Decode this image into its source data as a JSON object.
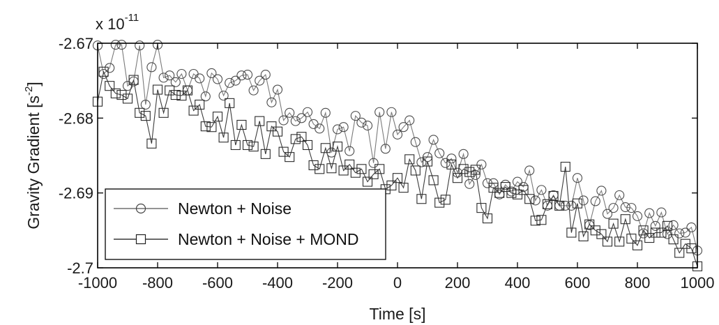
{
  "chart_data": {
    "type": "line",
    "xlabel": "Time [s]",
    "ylabel_main": "Gravity Gradient [s",
    "ylabel_sup": "-2",
    "ylabel_end": "]",
    "y_multiplier_base": "x 10",
    "y_multiplier_exp": "-11",
    "xlim": [
      -1000,
      1000
    ],
    "ylim": [
      -2.7,
      -2.67
    ],
    "x_ticks": [
      -1000,
      -800,
      -600,
      -400,
      -200,
      0,
      200,
      400,
      600,
      800,
      1000
    ],
    "x_tick_labels": [
      "-1000",
      "-800",
      "-600",
      "-400",
      "-200",
      "0",
      "200",
      "400",
      "600",
      "800",
      "1000"
    ],
    "y_ticks": [
      -2.67,
      -2.68,
      -2.69,
      -2.7
    ],
    "y_tick_labels": [
      "-2.67",
      "-2.68",
      "-2.69",
      "-2.7"
    ],
    "grid": false,
    "legend_position": "bottom-left",
    "colors": {
      "line": "#6b6b6b",
      "marker": "#4a4a4a",
      "axis": "#000000"
    },
    "series": [
      {
        "name": "Newton + Noise",
        "marker": "circle",
        "x": [
          -1000,
          -980,
          -960,
          -940,
          -920,
          -900,
          -880,
          -860,
          -840,
          -820,
          -800,
          -780,
          -760,
          -740,
          -720,
          -700,
          -680,
          -660,
          -640,
          -620,
          -600,
          -580,
          -560,
          -540,
          -520,
          -500,
          -480,
          -460,
          -440,
          -420,
          -400,
          -380,
          -360,
          -340,
          -320,
          -300,
          -280,
          -260,
          -240,
          -220,
          -200,
          -180,
          -160,
          -140,
          -120,
          -100,
          -80,
          -60,
          -40,
          -20,
          0,
          20,
          40,
          60,
          80,
          100,
          120,
          140,
          160,
          180,
          200,
          220,
          240,
          260,
          280,
          300,
          320,
          340,
          360,
          380,
          400,
          420,
          440,
          460,
          480,
          500,
          520,
          540,
          560,
          580,
          600,
          620,
          640,
          660,
          680,
          700,
          720,
          740,
          760,
          780,
          800,
          820,
          840,
          860,
          880,
          900,
          920,
          940,
          960,
          980,
          1000
        ],
        "values": [
          -2.6703,
          -2.6741,
          -2.6733,
          -2.6702,
          -2.6702,
          -2.6757,
          -2.6751,
          -2.6703,
          -2.6782,
          -2.6732,
          -2.6702,
          -2.6746,
          -2.6743,
          -2.6752,
          -2.6741,
          -2.6763,
          -2.6741,
          -2.6747,
          -2.6771,
          -2.674,
          -2.6748,
          -2.677,
          -2.6753,
          -2.675,
          -2.6743,
          -2.6742,
          -2.6763,
          -2.675,
          -2.6742,
          -2.6779,
          -2.6762,
          -2.6803,
          -2.6793,
          -2.6804,
          -2.68,
          -2.6792,
          -2.6808,
          -2.6814,
          -2.6793,
          -2.6846,
          -2.6815,
          -2.6812,
          -2.6844,
          -2.6797,
          -2.6806,
          -2.681,
          -2.686,
          -2.6792,
          -2.6841,
          -2.6792,
          -2.6822,
          -2.6812,
          -2.6803,
          -2.6832,
          -2.6859,
          -2.6852,
          -2.6829,
          -2.6847,
          -2.686,
          -2.6854,
          -2.6873,
          -2.6848,
          -2.6888,
          -2.6876,
          -2.6862,
          -2.6887,
          -2.6887,
          -2.6902,
          -2.6889,
          -2.6898,
          -2.6885,
          -2.6892,
          -2.687,
          -2.691,
          -2.6896,
          -2.6917,
          -2.6903,
          -2.6917,
          -2.6917,
          -2.6917,
          -2.688,
          -2.691,
          -2.6943,
          -2.6911,
          -2.6897,
          -2.6928,
          -2.692,
          -2.6903,
          -2.6919,
          -2.692,
          -2.6931,
          -2.6954,
          -2.6927,
          -2.6944,
          -2.6926,
          -2.6955,
          -2.6943,
          -2.6954,
          -2.6953,
          -2.6946,
          -2.6977
        ]
      },
      {
        "name": "Newton + Noise + MOND",
        "marker": "square",
        "x": [
          -1000,
          -980,
          -960,
          -940,
          -920,
          -900,
          -880,
          -860,
          -840,
          -820,
          -800,
          -780,
          -760,
          -740,
          -720,
          -700,
          -680,
          -660,
          -640,
          -620,
          -600,
          -580,
          -560,
          -540,
          -520,
          -500,
          -480,
          -460,
          -440,
          -420,
          -400,
          -380,
          -360,
          -340,
          -320,
          -300,
          -280,
          -260,
          -240,
          -220,
          -200,
          -180,
          -160,
          -140,
          -120,
          -100,
          -80,
          -60,
          -40,
          -20,
          0,
          20,
          40,
          60,
          80,
          100,
          120,
          140,
          160,
          180,
          200,
          220,
          240,
          260,
          280,
          300,
          320,
          340,
          360,
          380,
          400,
          420,
          440,
          460,
          480,
          500,
          520,
          540,
          560,
          580,
          600,
          620,
          640,
          660,
          680,
          700,
          720,
          740,
          760,
          780,
          800,
          820,
          840,
          860,
          880,
          900,
          920,
          940,
          960,
          980,
          1000
        ],
        "values": [
          -2.6778,
          -2.6738,
          -2.6757,
          -2.6767,
          -2.6769,
          -2.6774,
          -2.6749,
          -2.6793,
          -2.6797,
          -2.6834,
          -2.6762,
          -2.6793,
          -2.6763,
          -2.6769,
          -2.677,
          -2.6763,
          -2.679,
          -2.6782,
          -2.6811,
          -2.6812,
          -2.6798,
          -2.6826,
          -2.678,
          -2.6836,
          -2.6809,
          -2.6836,
          -2.6838,
          -2.6804,
          -2.6848,
          -2.6811,
          -2.6818,
          -2.6845,
          -2.6852,
          -2.6828,
          -2.6825,
          -2.6836,
          -2.6863,
          -2.6868,
          -2.684,
          -2.6867,
          -2.6838,
          -2.687,
          -2.6862,
          -2.6873,
          -2.6868,
          -2.6885,
          -2.6875,
          -2.6868,
          -2.6895,
          -2.689,
          -2.688,
          -2.6893,
          -2.6855,
          -2.687,
          -2.6908,
          -2.6858,
          -2.6883,
          -2.6913,
          -2.6909,
          -2.6862,
          -2.688,
          -2.6868,
          -2.6872,
          -2.6869,
          -2.692,
          -2.6934,
          -2.6893,
          -2.69,
          -2.6892,
          -2.69,
          -2.6902,
          -2.6896,
          -2.6908,
          -2.6937,
          -2.6936,
          -2.6915,
          -2.6904,
          -2.6917,
          -2.6865,
          -2.6953,
          -2.6914,
          -2.6958,
          -2.6942,
          -2.695,
          -2.6955,
          -2.6965,
          -2.6941,
          -2.6965,
          -2.6935,
          -2.6961,
          -2.697,
          -2.695,
          -2.696,
          -2.6953,
          -2.6953,
          -2.6944,
          -2.6962,
          -2.698,
          -2.6968,
          -2.6974,
          -2.6998
        ]
      }
    ]
  }
}
